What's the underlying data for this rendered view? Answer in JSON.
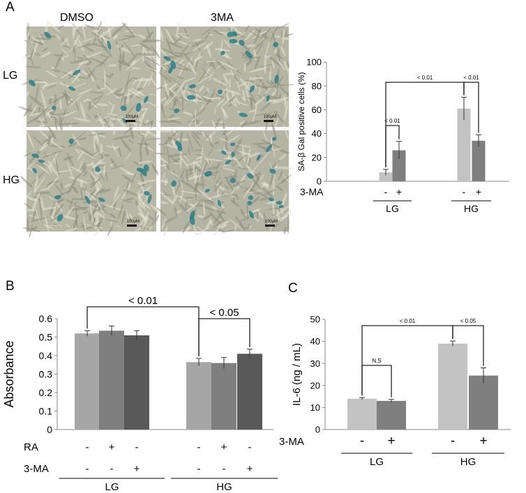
{
  "figure": {
    "panels": {
      "A": {
        "letter": "A",
        "micrograph": {
          "columns": [
            "DMSO",
            "3MA"
          ],
          "rows": [
            "LG",
            "HG"
          ],
          "scale_bar_label": "100μM"
        }
      },
      "B": {
        "letter": "B"
      },
      "C": {
        "letter": "C"
      }
    }
  },
  "chart_data": [
    {
      "panel": "A",
      "type": "bar",
      "categories": [
        "LG 3-MA -",
        "LG 3-MA +",
        "HG 3-MA -",
        "HG 3-MA +"
      ],
      "values": [
        7.5,
        26,
        61,
        34
      ],
      "errors": [
        2.5,
        7.5,
        9.5,
        5
      ],
      "colors": [
        "#c3c3c3",
        "#7f7f7f",
        "#c3c3c3",
        "#7f7f7f"
      ],
      "ylabel": "SA-β Gal positive cells (%)",
      "ylim": [
        0,
        100
      ],
      "yticks": [
        0,
        20,
        40,
        60,
        80,
        100
      ],
      "row_labels": [
        {
          "name": "3-MA",
          "signs": [
            "-",
            "+",
            "-",
            "+"
          ]
        }
      ],
      "groups": [
        {
          "label": "LG",
          "members": [
            0,
            1
          ]
        },
        {
          "label": "HG",
          "members": [
            2,
            3
          ]
        }
      ],
      "annotations": [
        {
          "text": "< 0.01",
          "from": 0,
          "to": 1
        },
        {
          "text": "< 0.01",
          "from": 0,
          "to": 2
        },
        {
          "text": "< 0.01",
          "from": 2,
          "to": 3
        }
      ]
    },
    {
      "panel": "B",
      "type": "bar",
      "categories": [
        "LG -/-",
        "LG RA+",
        "LG 3-MA+",
        "HG -/-",
        "HG RA+",
        "HG 3-MA+"
      ],
      "values": [
        0.52,
        0.535,
        0.51,
        0.365,
        0.36,
        0.41
      ],
      "errors": [
        0.015,
        0.025,
        0.025,
        0.02,
        0.03,
        0.025
      ],
      "colors": [
        "#a6a6a6",
        "#7f7f7f",
        "#595959",
        "#a6a6a6",
        "#7f7f7f",
        "#595959"
      ],
      "ylabel": "Absorbance",
      "ylim": [
        0,
        0.6
      ],
      "yticks": [
        0,
        0.1,
        0.2,
        0.3,
        0.4,
        0.5,
        0.6
      ],
      "ytick_labels": [
        "0",
        "0.1",
        "0.2",
        "0.3",
        "0.4",
        "0.5",
        "0.6"
      ],
      "row_labels": [
        {
          "name": "RA",
          "signs": [
            "-",
            "+",
            "-",
            "-",
            "+",
            "-"
          ]
        },
        {
          "name": "3-MA",
          "signs": [
            "-",
            "-",
            "+",
            "-",
            "-",
            "+"
          ]
        }
      ],
      "groups": [
        {
          "label": "LG",
          "members": [
            0,
            1,
            2
          ]
        },
        {
          "label": "HG",
          "members": [
            3,
            4,
            5
          ]
        }
      ],
      "annotations": [
        {
          "text": "< 0.01",
          "from": 0,
          "to": 3
        },
        {
          "text": "< 0.05",
          "from": 3,
          "to": 5
        }
      ]
    },
    {
      "panel": "C",
      "type": "bar",
      "categories": [
        "LG 3-MA -",
        "LG 3-MA +",
        "HG 3-MA -",
        "HG 3-MA +"
      ],
      "values": [
        14,
        13,
        39,
        24.5
      ],
      "errors": [
        0.5,
        0.7,
        1.2,
        3.5
      ],
      "colors": [
        "#c3c3c3",
        "#7f7f7f",
        "#c3c3c3",
        "#7f7f7f"
      ],
      "ylabel": "IL-6 (ng / mL)",
      "ylim": [
        0,
        50
      ],
      "yticks": [
        0,
        10,
        20,
        30,
        40,
        50
      ],
      "row_labels": [
        {
          "name": "3-MA",
          "signs": [
            "-",
            "+",
            "-",
            "+"
          ]
        }
      ],
      "groups": [
        {
          "label": "LG",
          "members": [
            0,
            1
          ]
        },
        {
          "label": "HG",
          "members": [
            2,
            3
          ]
        }
      ],
      "annotations": [
        {
          "text": "N.S",
          "from": 0,
          "to": 1
        },
        {
          "text": "< 0.01",
          "from": 0,
          "to": 2
        },
        {
          "text": "< 0.05",
          "from": 2,
          "to": 3
        }
      ]
    }
  ]
}
